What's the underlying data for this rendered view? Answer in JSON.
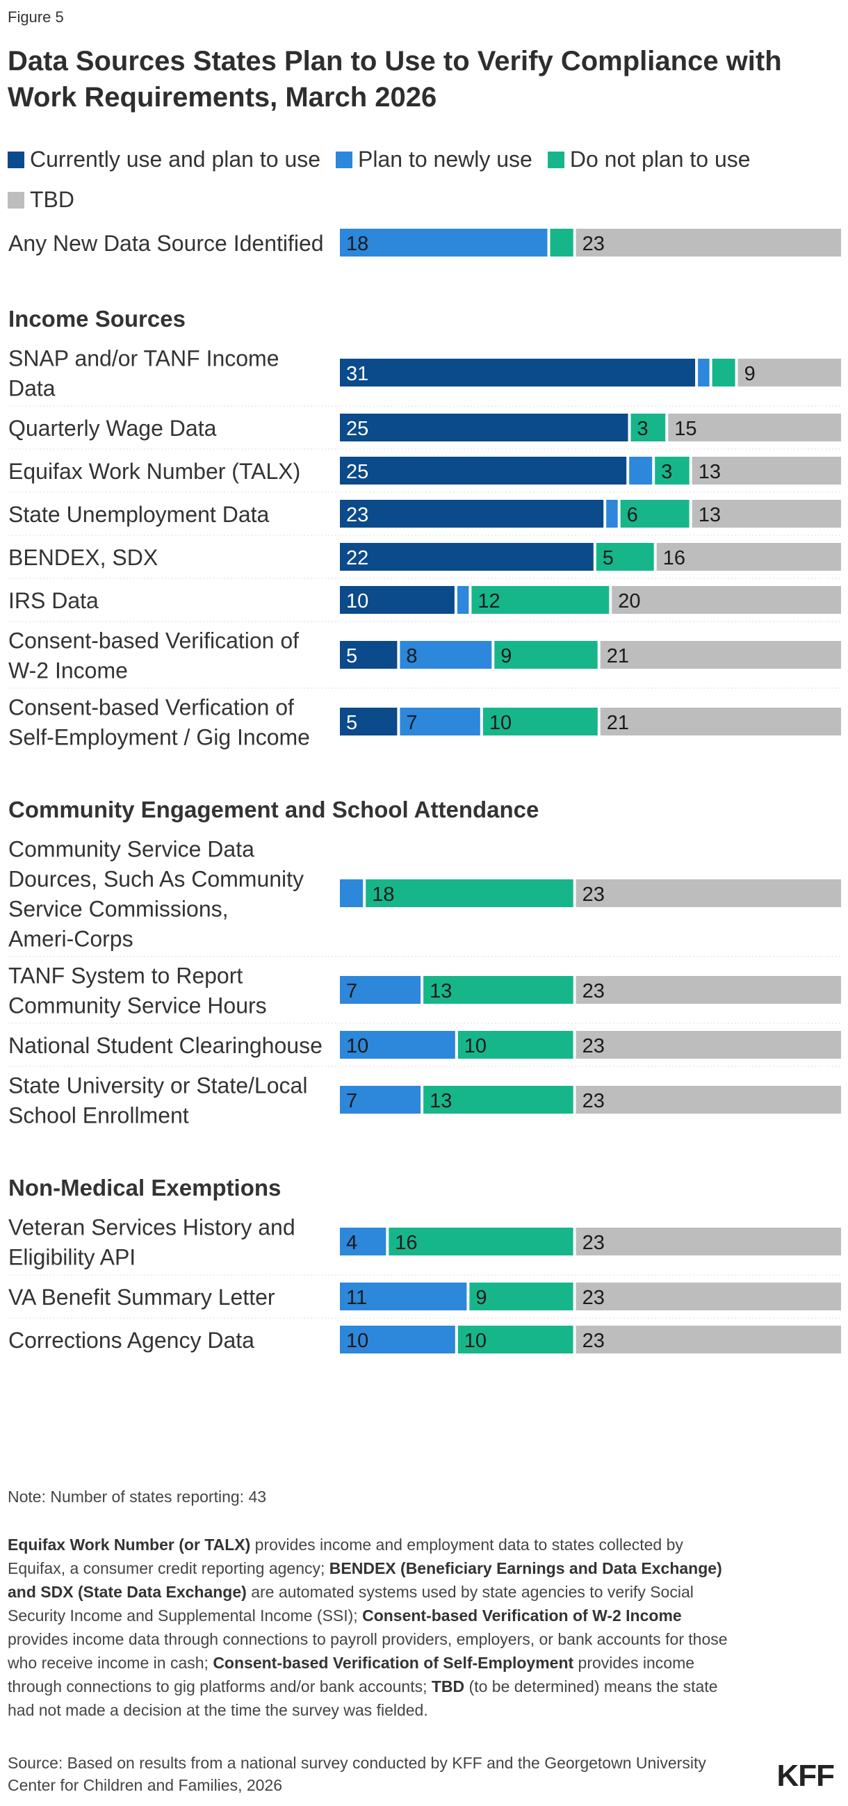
{
  "figure_label": "Figure 5",
  "title": "Data Sources States Plan to Use to Verify Compliance with Work Requirements, March 2026",
  "legend": [
    {
      "label": "Currently use and plan to use",
      "color": "#0b4a8b"
    },
    {
      "label": "Plan to newly use",
      "color": "#2d87db"
    },
    {
      "label": "Do not plan to use",
      "color": "#17b68a"
    },
    {
      "label": "TBD",
      "color": "#bdbdbd"
    }
  ],
  "chart_data": {
    "type": "bar",
    "orientation": "horizontal",
    "stacked": true,
    "total_states": 43,
    "series_names": [
      "Currently use and plan to use",
      "Plan to newly use",
      "Do not plan to use",
      "TBD"
    ],
    "colors": [
      "#0b4a8b",
      "#2d87db",
      "#17b68a",
      "#bdbdbd"
    ],
    "groups": [
      {
        "heading": "",
        "rows": [
          {
            "label": "Any New Data Source Identified",
            "values": [
              0,
              18,
              2,
              23
            ],
            "labels": [
              "",
              "18",
              "",
              "23"
            ]
          }
        ]
      },
      {
        "heading": "Income Sources",
        "rows": [
          {
            "label": "SNAP and/or TANF Income Data",
            "values": [
              31,
              1,
              2,
              9
            ],
            "labels": [
              "31",
              "",
              "",
              "9"
            ]
          },
          {
            "label": "Quarterly Wage Data",
            "values": [
              25,
              0,
              3,
              15
            ],
            "labels": [
              "25",
              "",
              "3",
              "15"
            ]
          },
          {
            "label": "Equifax Work Number (TALX)",
            "values": [
              25,
              2,
              3,
              13
            ],
            "labels": [
              "25",
              "",
              "3",
              "13"
            ]
          },
          {
            "label": "State Unemployment Data",
            "values": [
              23,
              1,
              6,
              13
            ],
            "labels": [
              "23",
              "",
              "6",
              "13"
            ]
          },
          {
            "label": "BENDEX, SDX",
            "values": [
              22,
              0,
              5,
              16
            ],
            "labels": [
              "22",
              "",
              "5",
              "16"
            ]
          },
          {
            "label": "IRS Data",
            "values": [
              10,
              1,
              12,
              20
            ],
            "labels": [
              "10",
              "",
              "12",
              "20"
            ]
          },
          {
            "label": "Consent-based Verification of W-2 Income",
            "values": [
              5,
              8,
              9,
              21
            ],
            "labels": [
              "5",
              "8",
              "9",
              "21"
            ]
          },
          {
            "label": "Consent-based Verfication of Self-Employment / Gig Income",
            "values": [
              5,
              7,
              10,
              21
            ],
            "labels": [
              "5",
              "7",
              "10",
              "21"
            ]
          }
        ]
      },
      {
        "heading": "Community Engagement and School Attendance",
        "rows": [
          {
            "label": "Community Service Data Dources, Such As Community Service Commissions, Ameri-Corps",
            "values": [
              0,
              2,
              18,
              23
            ],
            "labels": [
              "",
              "",
              "18",
              "23"
            ]
          },
          {
            "label": "TANF System to Report Community Service Hours",
            "values": [
              0,
              7,
              13,
              23
            ],
            "labels": [
              "",
              "7",
              "13",
              "23"
            ]
          },
          {
            "label": "National Student Clearinghouse",
            "values": [
              0,
              10,
              10,
              23
            ],
            "labels": [
              "",
              "10",
              "10",
              "23"
            ]
          },
          {
            "label": "State University or State/Local School Enrollment",
            "values": [
              0,
              7,
              13,
              23
            ],
            "labels": [
              "",
              "7",
              "13",
              "23"
            ]
          }
        ]
      },
      {
        "heading": "Non-Medical Exemptions",
        "rows": [
          {
            "label": "Veteran Services History and Eligibility API",
            "values": [
              0,
              4,
              16,
              23
            ],
            "labels": [
              "",
              "4",
              "16",
              "23"
            ]
          },
          {
            "label": "VA Benefit Summary Letter",
            "values": [
              0,
              11,
              9,
              23
            ],
            "labels": [
              "",
              "11",
              "9",
              "23"
            ]
          },
          {
            "label": "Corrections Agency Data",
            "values": [
              0,
              10,
              10,
              23
            ],
            "labels": [
              "",
              "10",
              "10",
              "23"
            ]
          }
        ]
      }
    ]
  },
  "note": "Note: Number of states reporting: 43",
  "footnote": [
    {
      "bold": true,
      "text": "Equifax Work Number (or TALX)"
    },
    {
      "bold": false,
      "text": " provides income and employment data to states collected by Equifax, a consumer credit reporting agency; "
    },
    {
      "bold": true,
      "text": "BENDEX (Beneficiary Earnings and Data Exchange) and SDX (State Data Exchange)"
    },
    {
      "bold": false,
      "text": " are automated systems used by state agencies to verify Social Security Income and Supplemental Income (SSI); "
    },
    {
      "bold": true,
      "text": "Consent-based Verification of W-2 Income"
    },
    {
      "bold": false,
      "text": " provides income data through connections to payroll providers, employers, or bank accounts for those who receive income in cash; "
    },
    {
      "bold": true,
      "text": "Consent-based Verification of Self-Employment"
    },
    {
      "bold": false,
      "text": " provides income through connections to gig platforms and/or bank accounts; "
    },
    {
      "bold": true,
      "text": "TBD"
    },
    {
      "bold": false,
      "text": " (to be determined) means the state had not made a decision at the time the survey was fielded."
    }
  ],
  "source": "Source: Based on results from a national survey conducted by KFF and the Georgetown University Center for Children and Families, 2026",
  "logo": "KFF"
}
